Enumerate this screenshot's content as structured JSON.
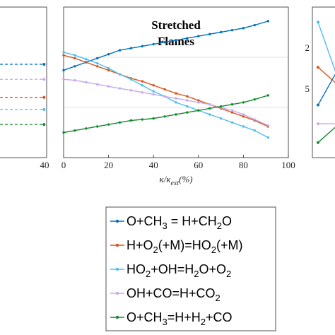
{
  "chart_data": [
    {
      "type": "line",
      "panel": "left (cropped)",
      "x_ticks": [
        40
      ],
      "series": [
        {
          "color": "#0072bd",
          "x": [
            29
          ],
          "y": [
            0.62
          ]
        },
        {
          "color": "#c8a8ec",
          "x": [
            29
          ],
          "y": [
            0.52
          ]
        },
        {
          "color": "#d95319",
          "x": [
            29
          ],
          "y": [
            0.4
          ]
        },
        {
          "color": "#4dbeee",
          "x": [
            29
          ],
          "y": [
            0.32
          ]
        },
        {
          "color": "#138a2f",
          "x": [
            29
          ],
          "y": [
            0.22
          ]
        }
      ]
    },
    {
      "type": "line",
      "panel": "center",
      "title": [
        "Stretched",
        "Flames"
      ],
      "xlabel": "κ/κ_ext(%)",
      "xlim": [
        0,
        100
      ],
      "x_ticks": [
        0,
        20,
        40,
        60,
        80,
        100
      ],
      "grid": "horizontal",
      "series": [
        {
          "legend_index": 0,
          "color": "#0072bd",
          "x": [
            0,
            5,
            10,
            15,
            20,
            25,
            30,
            35,
            40,
            45,
            50,
            55,
            60,
            65,
            70,
            75,
            80,
            85,
            91
          ],
          "y": [
            0.87,
            0.91,
            0.95,
            0.99,
            1.03,
            1.07,
            1.09,
            1.11,
            1.13,
            1.15,
            1.17,
            1.19,
            1.21,
            1.23,
            1.25,
            1.27,
            1.29,
            1.32,
            1.36
          ]
        },
        {
          "legend_index": 1,
          "color": "#d95319",
          "x": [
            0,
            5,
            10,
            15,
            20,
            25,
            30,
            35,
            40,
            45,
            50,
            55,
            60,
            65,
            70,
            75,
            80,
            85,
            91
          ],
          "y": [
            1.02,
            0.99,
            0.95,
            0.91,
            0.87,
            0.83,
            0.79,
            0.76,
            0.72,
            0.68,
            0.64,
            0.61,
            0.57,
            0.53,
            0.49,
            0.45,
            0.41,
            0.37,
            0.31
          ]
        },
        {
          "legend_index": 2,
          "color": "#4dbeee",
          "x": [
            0,
            5,
            10,
            15,
            20,
            25,
            30,
            35,
            40,
            45,
            50,
            55,
            60,
            65,
            70,
            75,
            80,
            85,
            91
          ],
          "y": [
            1.05,
            1.02,
            0.98,
            0.94,
            0.89,
            0.83,
            0.78,
            0.72,
            0.66,
            0.61,
            0.55,
            0.51,
            0.47,
            0.43,
            0.39,
            0.35,
            0.31,
            0.27,
            0.2
          ]
        },
        {
          "legend_index": 3,
          "color": "#c8a8ec",
          "x": [
            0,
            5,
            10,
            15,
            20,
            25,
            30,
            35,
            40,
            45,
            50,
            55,
            60,
            65,
            70,
            75,
            80,
            85,
            91
          ],
          "y": [
            0.78,
            0.77,
            0.75,
            0.73,
            0.71,
            0.69,
            0.67,
            0.65,
            0.63,
            0.61,
            0.59,
            0.57,
            0.55,
            0.53,
            0.5,
            0.47,
            0.43,
            0.38,
            0.32
          ]
        },
        {
          "legend_index": 4,
          "color": "#138a2f",
          "x": [
            0,
            5,
            10,
            15,
            20,
            25,
            30,
            35,
            40,
            45,
            50,
            55,
            60,
            65,
            70,
            75,
            80,
            85,
            91
          ],
          "y": [
            0.25,
            0.27,
            0.29,
            0.31,
            0.33,
            0.35,
            0.37,
            0.38,
            0.39,
            0.41,
            0.43,
            0.45,
            0.47,
            0.49,
            0.51,
            0.53,
            0.55,
            0.58,
            0.62
          ]
        }
      ]
    },
    {
      "type": "line",
      "panel": "right (cropped)",
      "y_ticks": [
        "2",
        "5"
      ],
      "series": [
        {
          "color": "#4dbeee",
          "x": [
            0,
            1
          ],
          "y": [
            3.6,
            2.0
          ]
        },
        {
          "color": "#d95319",
          "x": [
            0,
            1
          ],
          "y": [
            2.4,
            1.9
          ]
        },
        {
          "color": "#0072bd",
          "x": [
            0,
            1
          ],
          "y": [
            1.4,
            2.4
          ]
        },
        {
          "color": "#c8a8ec",
          "x": [
            0,
            1
          ],
          "y": [
            0.9,
            0.9
          ]
        },
        {
          "color": "#138a2f",
          "x": [
            0,
            1
          ],
          "y": [
            0.4,
            0.9
          ]
        }
      ]
    }
  ],
  "legend": {
    "placement": "below",
    "entries": [
      {
        "color": "#0072bd",
        "parts": [
          {
            "t": "O+CH"
          },
          {
            "t": "3",
            "sub": true
          },
          {
            "t": " = H+CH"
          },
          {
            "t": "2",
            "sub": true
          },
          {
            "t": "O"
          }
        ]
      },
      {
        "color": "#d95319",
        "parts": [
          {
            "t": "H+O"
          },
          {
            "t": "2",
            "sub": true
          },
          {
            "t": "(+M)=HO"
          },
          {
            "t": "2",
            "sub": true
          },
          {
            "t": "(+M)"
          }
        ]
      },
      {
        "color": "#4dbeee",
        "parts": [
          {
            "t": "HO"
          },
          {
            "t": "2",
            "sub": true
          },
          {
            "t": "+OH=H"
          },
          {
            "t": "2",
            "sub": true
          },
          {
            "t": "O+O"
          },
          {
            "t": "2",
            "sub": true
          }
        ]
      },
      {
        "color": "#c8a8ec",
        "parts": [
          {
            "t": "OH+CO=H+CO"
          },
          {
            "t": "2",
            "sub": true
          }
        ]
      },
      {
        "color": "#138a2f",
        "parts": [
          {
            "t": "O+CH"
          },
          {
            "t": "3",
            "sub": true
          },
          {
            "t": "=H+H"
          },
          {
            "t": "2",
            "sub": true
          },
          {
            "t": "+CO"
          }
        ]
      }
    ]
  }
}
